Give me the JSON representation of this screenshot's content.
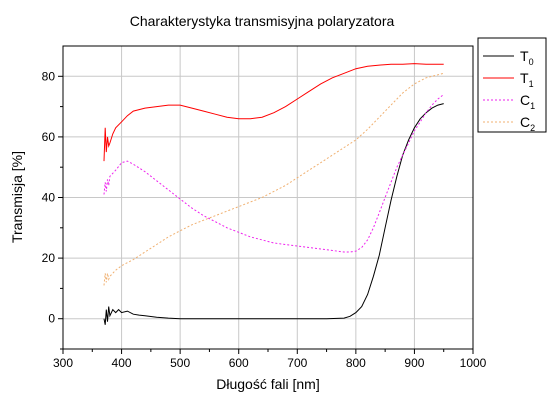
{
  "chart_data": {
    "type": "line",
    "title": "Charakterystyka transmisyjna polaryzatora",
    "xlabel": "Długość fali [nm]",
    "ylabel": "Transmisja [%]",
    "xlim": [
      300,
      1000
    ],
    "ylim": [
      -10,
      90
    ],
    "x_ticks": [
      300,
      400,
      500,
      600,
      700,
      800,
      900,
      1000
    ],
    "y_ticks": [
      0,
      20,
      40,
      60,
      80
    ],
    "grid": true,
    "legend_position": "outside-top-right",
    "series": [
      {
        "name": "T0",
        "label_main": "T",
        "label_sub": "0",
        "color": "#000000",
        "dash": "solid",
        "x": [
          370,
          372,
          374,
          376,
          378,
          380,
          385,
          390,
          395,
          400,
          410,
          420,
          430,
          440,
          460,
          480,
          500,
          550,
          600,
          650,
          700,
          750,
          780,
          790,
          800,
          810,
          820,
          830,
          840,
          850,
          860,
          870,
          880,
          890,
          900,
          910,
          920,
          930,
          940,
          950
        ],
        "y": [
          0,
          -2,
          3,
          -1,
          4,
          1,
          3,
          2,
          3,
          2,
          2.5,
          1.5,
          1.2,
          1,
          0.5,
          0.2,
          0,
          0,
          0,
          0,
          0,
          0,
          0.2,
          0.8,
          2,
          4,
          8,
          14,
          21,
          30,
          39,
          47,
          54,
          59,
          63,
          66,
          68,
          69.5,
          70.5,
          71
        ]
      },
      {
        "name": "T1",
        "label_main": "T",
        "label_sub": "1",
        "color": "#ff0000",
        "dash": "solid",
        "x": [
          370,
          372,
          374,
          376,
          378,
          380,
          385,
          390,
          400,
          410,
          420,
          440,
          460,
          480,
          500,
          520,
          540,
          560,
          580,
          600,
          620,
          640,
          660,
          680,
          700,
          720,
          740,
          760,
          780,
          800,
          820,
          840,
          860,
          880,
          900,
          920,
          940,
          950
        ],
        "y": [
          52,
          63,
          55,
          60,
          57,
          58,
          61,
          63,
          65,
          67,
          68.5,
          69.5,
          70,
          70.5,
          70.5,
          69.5,
          68.5,
          67.5,
          66.5,
          66,
          66,
          66.5,
          68,
          70,
          72.5,
          75,
          77.5,
          79.5,
          81,
          82.5,
          83.3,
          83.7,
          84,
          84,
          84.2,
          84,
          84,
          84
        ]
      },
      {
        "name": "C1",
        "label_main": "C",
        "label_sub": "1",
        "color": "#ee22ee",
        "dash": "2,2",
        "x": [
          370,
          372,
          374,
          376,
          378,
          380,
          385,
          390,
          400,
          410,
          420,
          440,
          460,
          480,
          500,
          520,
          540,
          560,
          580,
          600,
          620,
          640,
          660,
          680,
          700,
          720,
          740,
          760,
          780,
          790,
          800,
          810,
          820,
          830,
          840,
          850,
          860,
          870,
          880,
          890,
          900,
          910,
          920,
          930,
          940,
          950
        ],
        "y": [
          41,
          45,
          42,
          46,
          44,
          47,
          48,
          49,
          51.5,
          52,
          51,
          48.5,
          45.5,
          42.5,
          39.5,
          36.5,
          34,
          32,
          30,
          28.5,
          27,
          26,
          25,
          24.5,
          24,
          23.5,
          23,
          22.5,
          22,
          22,
          22.3,
          23.5,
          26,
          30,
          35,
          40,
          45,
          50,
          54,
          58,
          62,
          65,
          68,
          70.5,
          72.5,
          74
        ]
      },
      {
        "name": "C2",
        "label_main": "C",
        "label_sub": "2",
        "color": "#f0b070",
        "dash": "2,2",
        "x": [
          370,
          372,
          374,
          376,
          378,
          380,
          390,
          400,
          420,
          440,
          460,
          480,
          500,
          520,
          540,
          560,
          580,
          600,
          620,
          640,
          660,
          680,
          700,
          720,
          740,
          760,
          780,
          800,
          820,
          840,
          860,
          880,
          900,
          920,
          940,
          950
        ],
        "y": [
          11,
          15,
          12,
          15,
          13,
          14,
          16,
          17.5,
          19.5,
          22,
          24.5,
          27,
          29,
          31,
          32.5,
          34,
          35.5,
          37,
          38.5,
          40,
          42,
          44,
          46.5,
          49,
          51.5,
          54,
          56.5,
          59,
          62.5,
          66.5,
          70.5,
          74.5,
          77.5,
          79.5,
          80.5,
          81
        ]
      }
    ]
  }
}
